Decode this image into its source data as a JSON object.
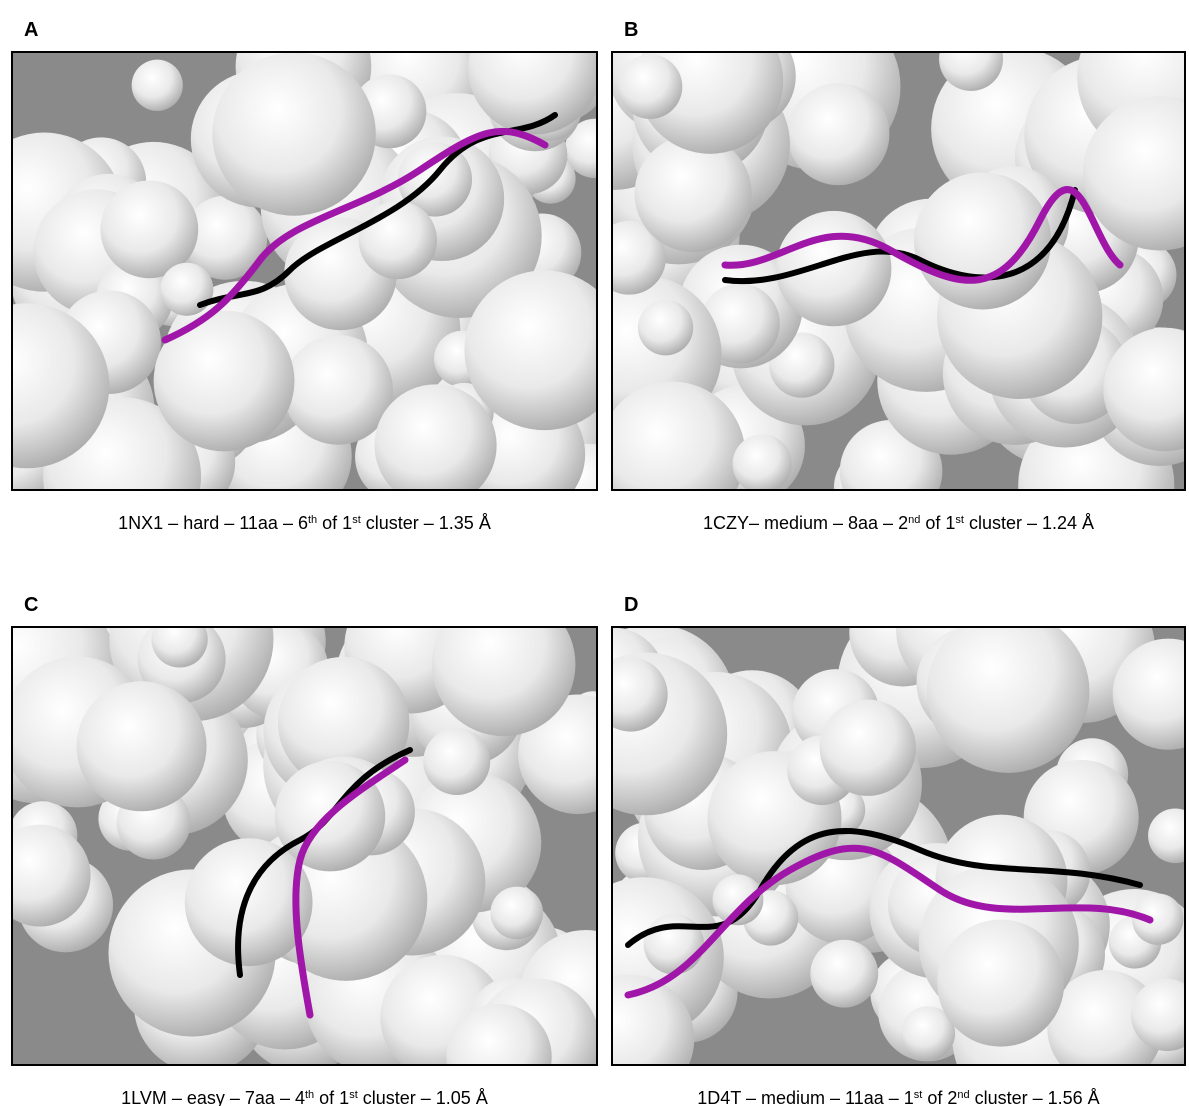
{
  "panels": [
    {
      "label": "A",
      "caption": [
        "1NX1 – hard – 11aa – 6",
        "th",
        " of 1",
        "st",
        " cluster – 1.35 Å"
      ]
    },
    {
      "label": "B",
      "caption": [
        "1CZY– medium – 8aa – 2",
        "nd",
        " of 1",
        "st",
        " cluster – 1.24 Å"
      ]
    },
    {
      "label": "C",
      "caption": [
        "1LVM – easy – 7aa – 4",
        "th",
        " of 1",
        "st",
        " cluster – 1.05 Å"
      ]
    },
    {
      "label": "D",
      "caption": [
        "1D4T – medium – 11aa – 1",
        "st",
        " of 2",
        "nd",
        " cluster – 1.56 Å"
      ]
    }
  ]
}
